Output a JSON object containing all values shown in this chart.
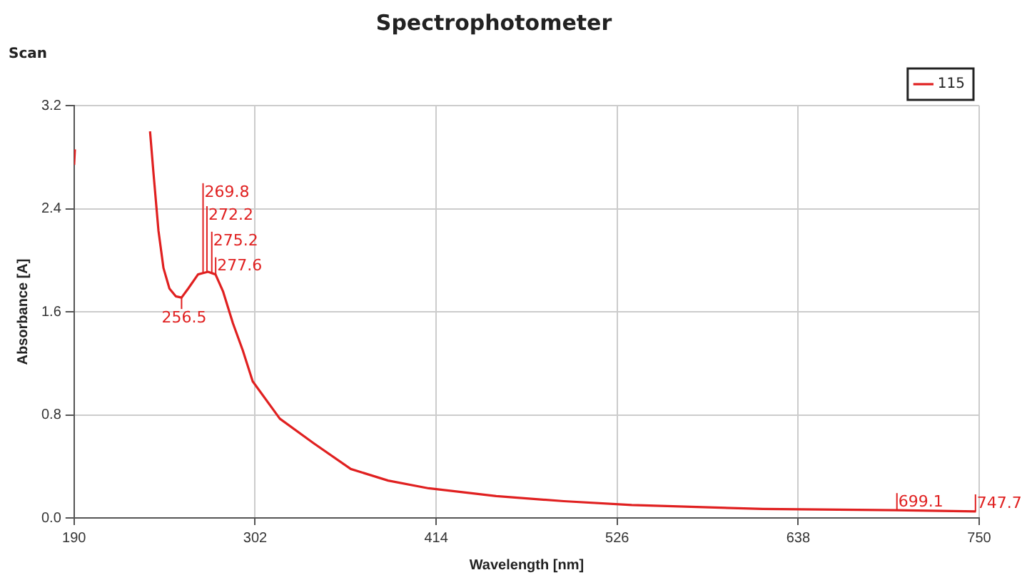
{
  "chart_data": {
    "type": "line",
    "title": "Spectrophotometer",
    "subtitle": "Scan",
    "xlabel": "Wavelength [nm]",
    "ylabel": "Absorbance [A]",
    "series": [
      {
        "name": "115",
        "color": "#e02020",
        "x": [
          190,
          190.5,
          null,
          237,
          239.1,
          242.2,
          245.3,
          249,
          252.9,
          256.5,
          260.6,
          266.7,
          269.8,
          272.9,
          277.5,
          282.1,
          288.3,
          294.4,
          300.5,
          317.3,
          338.2,
          361.2,
          384.3,
          409.4,
          451.2,
          493,
          535,
          616,
          698,
          748
        ],
        "values": [
          2.74,
          2.86,
          null,
          3.0,
          2.68,
          2.23,
          1.94,
          1.78,
          1.72,
          1.71,
          1.78,
          1.89,
          1.9,
          1.91,
          1.89,
          1.76,
          1.51,
          1.3,
          1.06,
          0.77,
          0.58,
          0.38,
          0.29,
          0.23,
          0.17,
          0.13,
          0.1,
          0.07,
          0.06,
          0.05
        ]
      }
    ],
    "annotations": [
      {
        "text": "256.5",
        "x": 256.5,
        "y": 1.71
      },
      {
        "text": "269.8",
        "x": 269.8,
        "y": 1.9
      },
      {
        "text": "272.2",
        "x": 272.2,
        "y": 1.91
      },
      {
        "text": "275.2",
        "x": 275.2,
        "y": 1.9
      },
      {
        "text": "277.6",
        "x": 277.6,
        "y": 1.89
      },
      {
        "text": "699.1",
        "x": 699.1,
        "y": 0.06
      },
      {
        "text": "747.7",
        "x": 747.7,
        "y": 0.05
      }
    ],
    "xlim": [
      190,
      750
    ],
    "xticks": [
      190,
      302,
      414,
      526,
      638,
      750
    ],
    "ylim": [
      0,
      3.2
    ],
    "yticks": [
      {
        "value": 0,
        "label": "0.0"
      },
      0.8,
      1.6,
      2.4,
      3.2
    ],
    "grid": true,
    "legend": "top right",
    "marker": "none",
    "line_style": "solid"
  }
}
